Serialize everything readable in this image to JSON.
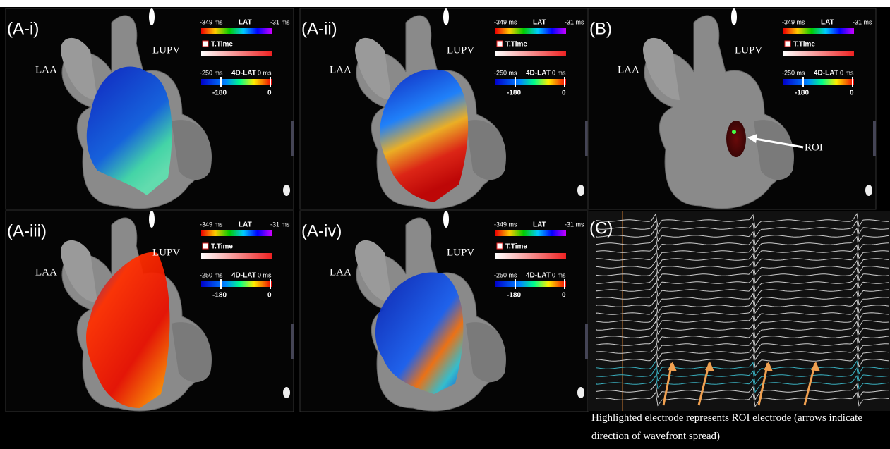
{
  "panels": [
    {
      "label": "(A-i)",
      "landmarks": [
        "LAA",
        "LUPV"
      ]
    },
    {
      "label": "(A-ii)",
      "landmarks": [
        "LAA",
        "LUPV"
      ]
    },
    {
      "label": "(B)",
      "landmarks": [
        "LAA",
        "LUPV"
      ],
      "annotation": "ROI"
    },
    {
      "label": "(A-iii)",
      "landmarks": [
        "LAA",
        "LUPV"
      ]
    },
    {
      "label": "(A-iv)",
      "landmarks": [
        "LAA",
        "LUPV"
      ]
    }
  ],
  "legend": {
    "lat_min": "-349 ms",
    "lat_title": "LAT",
    "lat_max": "-31 ms",
    "ttime_title": "T.Time",
    "lat4d_min": "-250 ms",
    "lat4d_title": "4D-LAT",
    "lat4d_max": "0 ms",
    "marker_left": "-180",
    "marker_right": "0"
  },
  "ecg_panel": {
    "label": "(C)"
  },
  "caption": "Highlighted electrode represents ROI electrode (arrows indicate direction of wavefront spread)"
}
